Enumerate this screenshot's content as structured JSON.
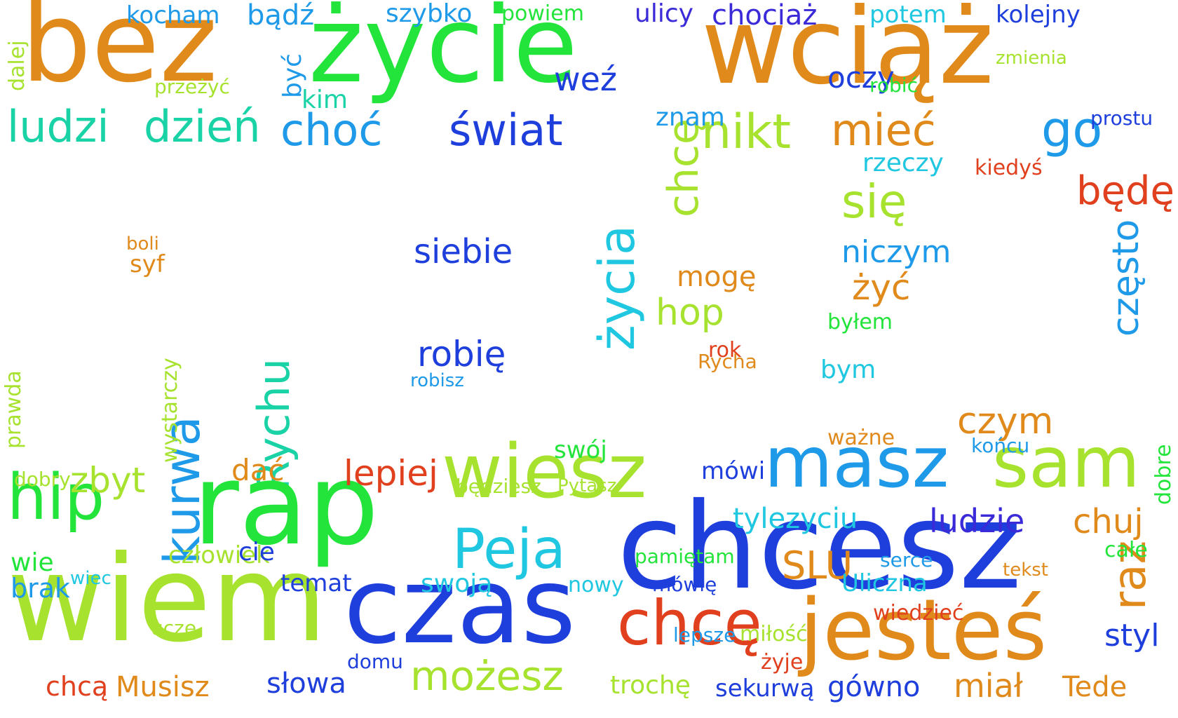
{
  "palette": {
    "orange": "#e08a1c",
    "green": "#22e43a",
    "lime": "#a6e22e",
    "blue": "#1e3fdc",
    "cyan": "#1fc7e0",
    "sky": "#1e9ae8",
    "red": "#e0401e",
    "teal": "#19d3a6",
    "indigo": "#3a2ad8"
  },
  "words": [
    {
      "text": "bez",
      "color": "orange"
    },
    {
      "text": "życie",
      "color": "green"
    },
    {
      "text": "wciąż",
      "color": "orange"
    },
    {
      "text": "ludzi",
      "color": "teal"
    },
    {
      "text": "dzień",
      "color": "teal"
    },
    {
      "text": "choć",
      "color": "sky"
    },
    {
      "text": "świat",
      "color": "blue"
    },
    {
      "text": "nikt",
      "color": "lime"
    },
    {
      "text": "mieć",
      "color": "orange"
    },
    {
      "text": "go",
      "color": "sky"
    },
    {
      "text": "kocham",
      "color": "sky"
    },
    {
      "text": "bądź",
      "color": "sky"
    },
    {
      "text": "szybko",
      "color": "sky"
    },
    {
      "text": "powiem",
      "color": "green"
    },
    {
      "text": "ulicy",
      "color": "indigo"
    },
    {
      "text": "chociaż",
      "color": "indigo"
    },
    {
      "text": "potem",
      "color": "cyan"
    },
    {
      "text": "kolejny",
      "color": "blue"
    },
    {
      "text": "weź",
      "color": "blue"
    },
    {
      "text": "oczy",
      "color": "blue"
    },
    {
      "text": "robić",
      "color": "green"
    },
    {
      "text": "kiedyś",
      "color": "red"
    },
    {
      "text": "będę",
      "color": "red"
    },
    {
      "text": "się",
      "color": "lime"
    },
    {
      "text": "niczym",
      "color": "sky"
    },
    {
      "text": "żyć",
      "color": "orange"
    },
    {
      "text": "byłem",
      "color": "green"
    },
    {
      "text": "siebie",
      "color": "blue"
    },
    {
      "text": "robię",
      "color": "blue"
    },
    {
      "text": "hop",
      "color": "lime"
    },
    {
      "text": "mogę",
      "color": "orange"
    },
    {
      "text": "życia",
      "color": "cyan"
    },
    {
      "text": "chcę",
      "color": "lime"
    },
    {
      "text": "znam",
      "color": "sky"
    },
    {
      "text": "Rychu",
      "color": "teal"
    },
    {
      "text": "kurwa",
      "color": "sky"
    },
    {
      "text": "rap",
      "color": "green"
    },
    {
      "text": "wiesz",
      "color": "lime"
    },
    {
      "text": "masz",
      "color": "sky"
    },
    {
      "text": "sam",
      "color": "lime"
    },
    {
      "text": "chcesz",
      "color": "blue"
    },
    {
      "text": "czas",
      "color": "blue"
    },
    {
      "text": "wiem",
      "color": "lime"
    },
    {
      "text": "hip",
      "color": "green"
    },
    {
      "text": "jesteś",
      "color": "orange"
    },
    {
      "text": "chcę",
      "color": "red"
    },
    {
      "text": "możesz",
      "color": "lime"
    },
    {
      "text": "Peja",
      "color": "cyan"
    },
    {
      "text": "lepiej",
      "color": "red"
    },
    {
      "text": "zbyt",
      "color": "lime"
    },
    {
      "text": "ludzie",
      "color": "indigo"
    },
    {
      "text": "czym",
      "color": "orange"
    },
    {
      "text": "raz",
      "color": "orange"
    },
    {
      "text": "chuj",
      "color": "orange"
    },
    {
      "text": "styl",
      "color": "blue"
    },
    {
      "text": "Tede",
      "color": "orange"
    },
    {
      "text": "gówno",
      "color": "blue"
    },
    {
      "text": "miał",
      "color": "orange"
    },
    {
      "text": "sekurwą",
      "color": "blue"
    },
    {
      "text": "słowa",
      "color": "blue"
    },
    {
      "text": "Musisz",
      "color": "orange"
    },
    {
      "text": "chcą",
      "color": "red"
    },
    {
      "text": "brak",
      "color": "sky"
    },
    {
      "text": "wie",
      "color": "green"
    },
    {
      "text": "SLU",
      "color": "orange"
    },
    {
      "text": "tylezyciu",
      "color": "cyan"
    },
    {
      "text": "swoją",
      "color": "cyan"
    },
    {
      "text": "temat",
      "color": "blue"
    },
    {
      "text": "będziesz",
      "color": "lime"
    },
    {
      "text": "swój",
      "color": "green"
    },
    {
      "text": "dać",
      "color": "orange"
    },
    {
      "text": "często",
      "color": "sky"
    },
    {
      "text": "rzeczy",
      "color": "cyan"
    },
    {
      "text": "przeżyć",
      "color": "lime"
    },
    {
      "text": "kim",
      "color": "teal"
    },
    {
      "text": "dalej",
      "color": "lime"
    },
    {
      "text": "być",
      "color": "sky"
    },
    {
      "text": "człowiek",
      "color": "lime"
    },
    {
      "text": "prawda",
      "color": "lime"
    },
    {
      "text": "trochę",
      "color": "lime"
    },
    {
      "text": "robisz",
      "color": "sky"
    },
    {
      "text": "boli",
      "color": "orange"
    },
    {
      "text": "syf",
      "color": "orange"
    },
    {
      "text": "rok",
      "color": "red"
    },
    {
      "text": "Rycha",
      "color": "orange"
    },
    {
      "text": "bym",
      "color": "cyan"
    },
    {
      "text": "mówi",
      "color": "blue"
    },
    {
      "text": "końcu",
      "color": "sky"
    },
    {
      "text": "ważne",
      "color": "orange"
    },
    {
      "text": "wystarczy",
      "color": "lime"
    },
    {
      "text": "dobry",
      "color": "lime"
    },
    {
      "text": "Uliczna",
      "color": "cyan"
    },
    {
      "text": "serce",
      "color": "sky"
    },
    {
      "text": "całe",
      "color": "green"
    },
    {
      "text": "tekst",
      "color": "orange"
    },
    {
      "text": "wiedzieć",
      "color": "red"
    },
    {
      "text": "lepsze",
      "color": "sky"
    },
    {
      "text": "miłość",
      "color": "lime"
    },
    {
      "text": "żyje",
      "color": "red"
    },
    {
      "text": "nowy",
      "color": "cyan"
    },
    {
      "text": "mówię",
      "color": "blue"
    },
    {
      "text": "pamiętam",
      "color": "green"
    },
    {
      "text": "dobre",
      "color": "green"
    },
    {
      "text": "cie",
      "color": "blue"
    },
    {
      "text": "uczę",
      "color": "lime"
    },
    {
      "text": "domu",
      "color": "blue"
    },
    {
      "text": "Pytasz",
      "color": "lime"
    },
    {
      "text": "zmienia",
      "color": "lime"
    },
    {
      "text": "prostu",
      "color": "blue"
    },
    {
      "text": "wiec",
      "color": "cyan"
    }
  ]
}
